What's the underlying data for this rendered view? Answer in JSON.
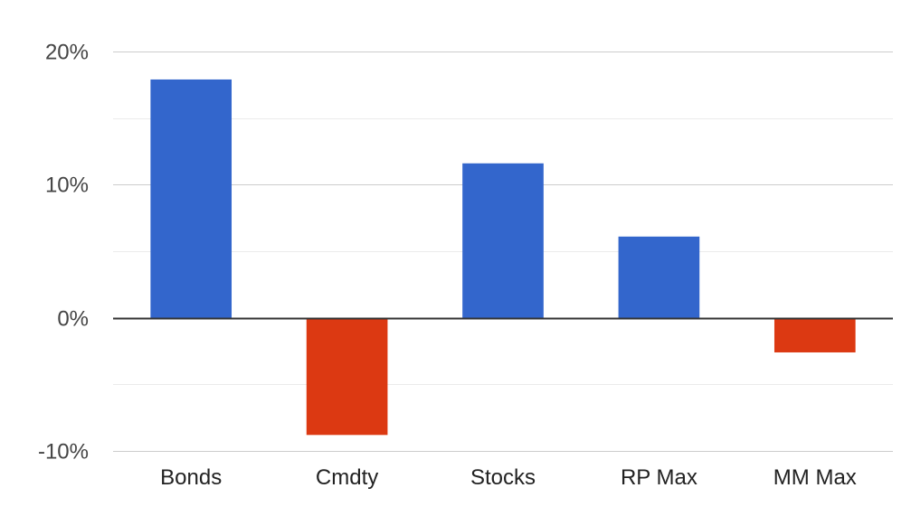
{
  "chart_data": {
    "type": "bar",
    "title": "",
    "xlabel": "",
    "ylabel": "",
    "categories": [
      "Bonds",
      "Cmdty",
      "Stocks",
      "RP Max",
      "MM Max"
    ],
    "values": [
      17.9,
      -8.8,
      11.6,
      6.1,
      -2.6
    ],
    "ylim": [
      -10,
      20
    ],
    "yticks": [
      20,
      10,
      0,
      -10
    ],
    "ytick_labels": [
      "20%",
      "10%",
      "0%",
      "-10%"
    ],
    "grid": true,
    "minor_grid": true,
    "legend": "none",
    "colors": {
      "positive": "#3366cc",
      "negative": "#dc3912",
      "gridline": "#cccccc",
      "minor_gridline": "#ebebeb",
      "zero_line": "#333333"
    }
  }
}
